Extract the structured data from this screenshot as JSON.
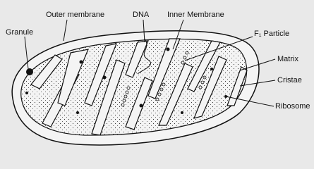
{
  "labels": {
    "outer_membrane": "Outer membrane",
    "dna": "DNA",
    "inner_membrane": "Inner Membrane",
    "granule": "Granule",
    "f1_particle": "F₁ Particle",
    "matrix": "Matrix",
    "cristae": "Cristae",
    "ribosome": "Ribosome"
  }
}
